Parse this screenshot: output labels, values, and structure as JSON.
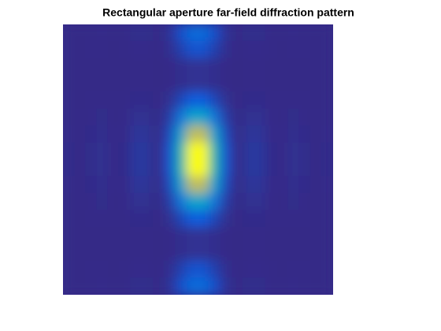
{
  "chart_data": {
    "type": "contourf",
    "title": "Rectangular aperture far-field diffraction pattern",
    "colormap": "parula",
    "z": [
      [
        0.001,
        0,
        0.002,
        0.003,
        0.001,
        0.001,
        0.008,
        0.008,
        0,
        0.024,
        0.105,
        0.189,
        0.189,
        0.105,
        0.024,
        0,
        0.008,
        0.008,
        0.001,
        0.001,
        0.003,
        0.002,
        0,
        0.001
      ],
      [
        0.001,
        0,
        0.001,
        0.002,
        0,
        0.001,
        0.005,
        0.005,
        0,
        0.015,
        0.063,
        0.114,
        0.114,
        0.063,
        0.015,
        0,
        0.005,
        0.005,
        0.001,
        0,
        0.002,
        0.001,
        0,
        0.001
      ],
      [
        0,
        0,
        0,
        0,
        0,
        0,
        0.001,
        0.001,
        0,
        0.002,
        0.011,
        0.019,
        0.019,
        0.011,
        0.002,
        0,
        0.001,
        0.001,
        0,
        0,
        0,
        0,
        0,
        0
      ],
      [
        0,
        0,
        0,
        0,
        0,
        0,
        0.001,
        0.001,
        0,
        0.002,
        0.011,
        0.019,
        0.019,
        0.011,
        0.002,
        0,
        0.001,
        0.001,
        0,
        0,
        0,
        0,
        0,
        0
      ],
      [
        0.001,
        0,
        0.001,
        0.002,
        0.001,
        0.001,
        0.006,
        0.006,
        0,
        0.018,
        0.079,
        0.142,
        0.142,
        0.079,
        0.018,
        0,
        0.006,
        0.006,
        0.001,
        0.001,
        0.002,
        0.001,
        0,
        0.001
      ],
      [
        0.003,
        0,
        0.003,
        0.007,
        0.002,
        0.003,
        0.017,
        0.016,
        0,
        0.052,
        0.226,
        0.407,
        0.407,
        0.226,
        0.052,
        0,
        0.016,
        0.017,
        0.003,
        0.002,
        0.007,
        0.003,
        0,
        0.003
      ],
      [
        0.005,
        0,
        0.006,
        0.012,
        0.003,
        0.005,
        0.029,
        0.029,
        0,
        0.092,
        0.395,
        0.71,
        0.71,
        0.395,
        0.092,
        0,
        0.029,
        0.029,
        0.005,
        0.003,
        0.012,
        0.006,
        0,
        0.005
      ],
      [
        0.006,
        0,
        0.008,
        0.016,
        0.004,
        0.006,
        0.038,
        0.037,
        0,
        0.118,
        0.51,
        0.919,
        0.919,
        0.51,
        0.118,
        0,
        0.037,
        0.038,
        0.006,
        0.004,
        0.016,
        0.008,
        0,
        0.006
      ],
      [
        0.006,
        0,
        0.008,
        0.016,
        0.004,
        0.006,
        0.038,
        0.037,
        0,
        0.118,
        0.51,
        0.919,
        0.919,
        0.51,
        0.118,
        0,
        0.037,
        0.038,
        0.006,
        0.004,
        0.016,
        0.008,
        0,
        0.006
      ],
      [
        0.005,
        0,
        0.006,
        0.012,
        0.003,
        0.005,
        0.029,
        0.029,
        0,
        0.092,
        0.395,
        0.71,
        0.71,
        0.395,
        0.092,
        0,
        0.029,
        0.029,
        0.005,
        0.003,
        0.012,
        0.006,
        0,
        0.005
      ],
      [
        0.003,
        0,
        0.003,
        0.007,
        0.002,
        0.003,
        0.017,
        0.016,
        0,
        0.052,
        0.226,
        0.407,
        0.407,
        0.226,
        0.052,
        0,
        0.016,
        0.017,
        0.003,
        0.002,
        0.007,
        0.003,
        0,
        0.003
      ],
      [
        0.001,
        0,
        0.001,
        0.002,
        0.001,
        0.001,
        0.006,
        0.006,
        0,
        0.018,
        0.079,
        0.142,
        0.142,
        0.079,
        0.018,
        0,
        0.006,
        0.006,
        0.001,
        0.001,
        0.002,
        0.001,
        0,
        0.001
      ],
      [
        0,
        0,
        0,
        0,
        0,
        0,
        0.001,
        0.001,
        0,
        0.002,
        0.011,
        0.019,
        0.019,
        0.011,
        0.002,
        0,
        0.001,
        0.001,
        0,
        0,
        0,
        0,
        0,
        0
      ],
      [
        0,
        0,
        0,
        0,
        0,
        0,
        0.001,
        0.001,
        0,
        0.002,
        0.011,
        0.019,
        0.019,
        0.011,
        0.002,
        0,
        0.001,
        0.001,
        0,
        0,
        0,
        0,
        0,
        0
      ],
      [
        0.001,
        0,
        0.001,
        0.002,
        0,
        0.001,
        0.005,
        0.005,
        0,
        0.015,
        0.063,
        0.114,
        0.114,
        0.063,
        0.015,
        0,
        0.005,
        0.005,
        0.001,
        0,
        0.002,
        0.001,
        0,
        0.001
      ],
      [
        0.001,
        0,
        0.002,
        0.003,
        0.001,
        0.001,
        0.008,
        0.008,
        0,
        0.024,
        0.105,
        0.189,
        0.189,
        0.105,
        0.024,
        0,
        0.008,
        0.008,
        0.001,
        0.001,
        0.003,
        0.002,
        0,
        0.001
      ]
    ]
  }
}
